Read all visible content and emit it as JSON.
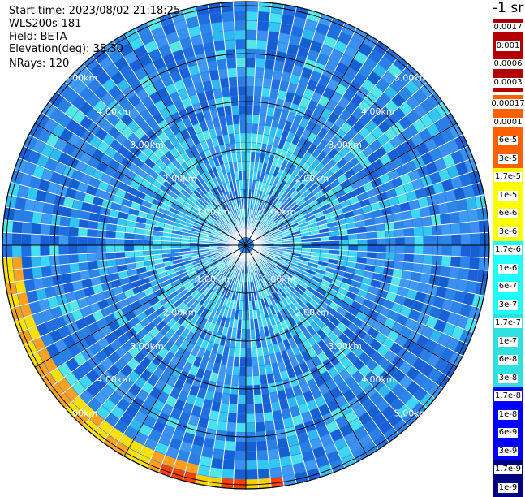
{
  "header": {
    "start_time": "Start time: 2023/08/02 21:18:25",
    "instrument": "WLS200s-181",
    "field": "Field: BETA",
    "elevation": "Elevation(deg): 35.30",
    "nrays": "NRays: 120"
  },
  "colorbar": {
    "unit": "-1 sr",
    "groups": [
      {
        "color": "#b30000",
        "labels": [
          "0.0017",
          "0.001",
          "0.0006",
          "0.0003"
        ]
      },
      {
        "color": "#ff6000",
        "labels": [
          "0.00017",
          "0.0001",
          "6e-5",
          "3e-5"
        ]
      },
      {
        "color": "#ffff00",
        "labels": [
          "1.7e-5",
          "1e-5",
          "6e-6",
          "3e-6"
        ]
      },
      {
        "color": "#20ffff",
        "labels": [
          "1.7e-6",
          "1e-6",
          "6e-7",
          "3e-7"
        ]
      },
      {
        "color": "#30e0e0",
        "labels": [
          "1.7e-7",
          "1e-7",
          "6e-8",
          "3e-8"
        ]
      },
      {
        "color": "#0000ff",
        "labels": [
          "1.7e-8",
          "1e-8",
          "6e-9",
          "3e-9"
        ]
      },
      {
        "color": "#000080",
        "labels": [
          "1.7e-9",
          "1e-9"
        ]
      }
    ]
  },
  "range_rings": {
    "labels": [
      "1.00km",
      "2.00km",
      "3.00km",
      "4.00km",
      "5.00km"
    ]
  },
  "colors": {
    "background_field": "#2a7fe0",
    "ring_color": "#000000",
    "range_label_color": "#ffffff"
  }
}
